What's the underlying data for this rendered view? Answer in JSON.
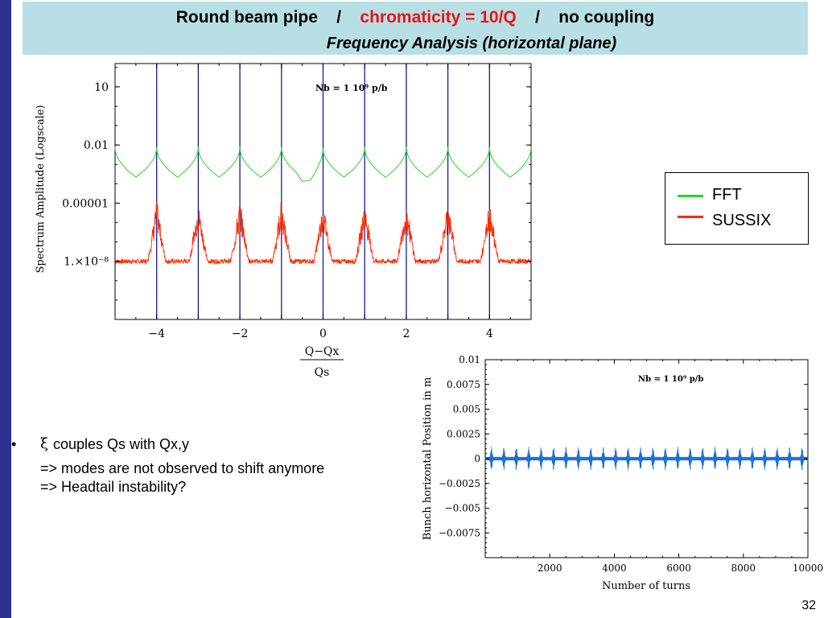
{
  "title": {
    "part1": "Round beam pipe    /    ",
    "part2": "chromaticity = 10/Q",
    "part3": "    /    no coupling",
    "subtitle": "Frequency Analysis (horizontal plane)"
  },
  "bullets": {
    "marker": "•",
    "xi": "ξ",
    "line1": "couples Qs with Qx,y",
    "line2": "=> modes are not observed to shift anymore",
    "line3": "=> Headtail instability?"
  },
  "page_number": "32",
  "legend": {
    "items": [
      {
        "label": "FFT",
        "color": "#22dd22"
      },
      {
        "label": "SUSSIX",
        "color": "#ff2a00"
      }
    ]
  },
  "chart_data": [
    {
      "type": "line",
      "annotation": "Nb = 1 10⁹ p/b",
      "ylabel": "Spectrum Amplitude (Logscale)",
      "xlabel_num": "Q−Qx",
      "xlabel_den": "Qs",
      "log_y": true,
      "xlim": [
        -5,
        5
      ],
      "ylim_log10": [
        -11,
        2.2
      ],
      "x_ticks": [
        -4,
        -2,
        0,
        2,
        4
      ],
      "x_tick_labels": [
        "−4",
        "−2",
        "0",
        "2",
        "4"
      ],
      "y_ticks_log10": [
        1,
        -2,
        -5,
        -8
      ],
      "y_tick_labels": [
        "10",
        "0.01",
        "0.00001",
        "1.×10⁻⁸"
      ],
      "vertical_lines_x": [
        -4,
        -3,
        -2,
        -1,
        0,
        1,
        2,
        3,
        4
      ],
      "vertical_line_color": "#1a1aa0",
      "series": [
        {
          "name": "FFT",
          "color": "#22dd22",
          "baseline_log10": -3.4,
          "peak_log10": -2.1,
          "peaks_x": [
            -5,
            -4,
            -3,
            -2,
            -1,
            0,
            1,
            2,
            3,
            4,
            5
          ]
        },
        {
          "name": "SUSSIX",
          "color": "#ff2a00",
          "baseline_log10": -8.0,
          "peak_log10": -4.8,
          "peaks_x": [
            -4,
            -3,
            -2,
            -1,
            0,
            1,
            2,
            3,
            4
          ]
        }
      ]
    },
    {
      "type": "line",
      "annotation": "Nb = 1 10⁹ p/b",
      "xlabel": "Number of turns",
      "ylabel": "Bunch horizontal Position in m",
      "xlim": [
        0,
        10000
      ],
      "ylim": [
        -0.01,
        0.01
      ],
      "x_ticks": [
        2000,
        4000,
        6000,
        8000,
        10000
      ],
      "x_tick_labels": [
        "2000",
        "4000",
        "6000",
        "8000",
        "10000"
      ],
      "y_ticks": [
        0.01,
        0.0075,
        0.005,
        0.0025,
        0,
        -0.0025,
        -0.005,
        -0.0075
      ],
      "y_tick_labels": [
        "0.01",
        "0.0075",
        "0.005",
        "0.0025",
        "0",
        "−0.0025",
        "−0.005",
        "−0.0075"
      ],
      "series": [
        {
          "color": "#1f6fd6",
          "amplitude": 0.0012,
          "burst_period_turns": 385
        }
      ]
    }
  ]
}
